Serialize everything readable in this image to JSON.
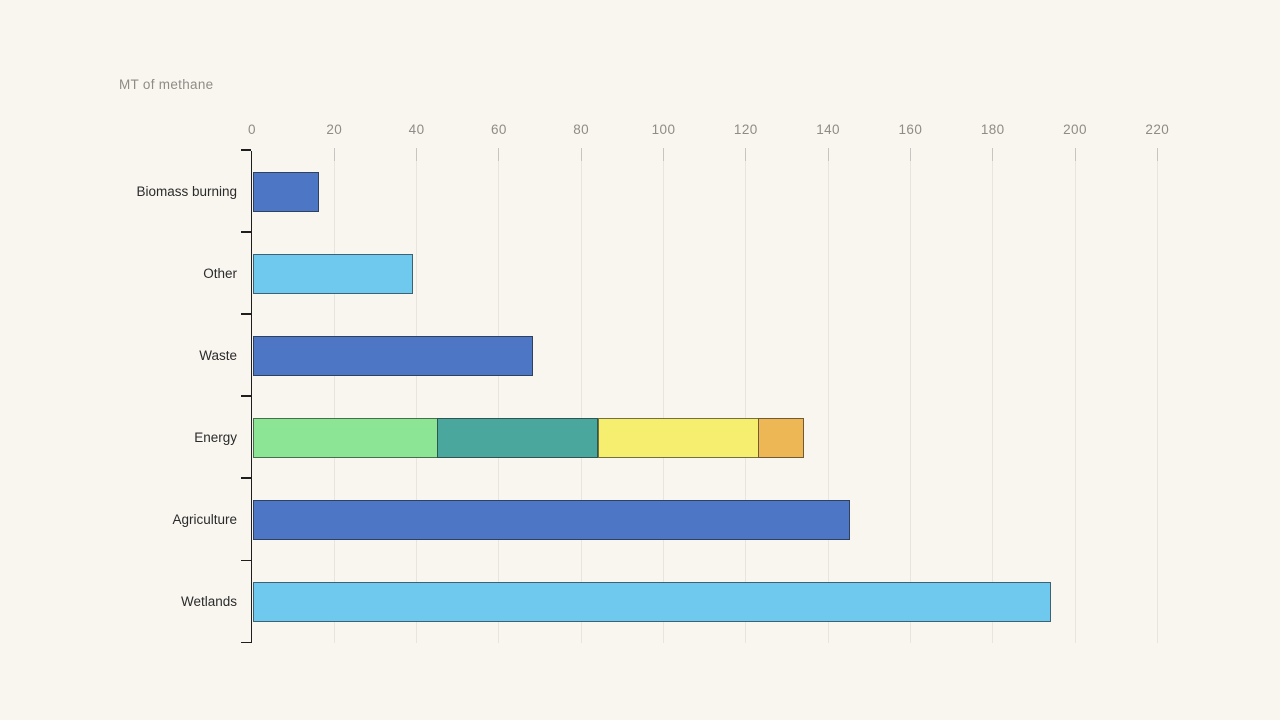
{
  "chart_data": {
    "type": "bar",
    "orientation": "horizontal",
    "title": "MT of methane",
    "xlabel": "",
    "ylabel": "",
    "xlim": [
      0,
      225
    ],
    "x_ticks": [
      0,
      20,
      40,
      60,
      80,
      100,
      120,
      140,
      160,
      180,
      200,
      220
    ],
    "grid": true,
    "legend": false,
    "categories": [
      "Biomass burning",
      "Other",
      "Waste",
      "Energy",
      "Agriculture",
      "Wetlands"
    ],
    "bars": [
      {
        "category": "Biomass burning",
        "total": 16,
        "segments": [
          {
            "value": 16,
            "color": "darkBlue"
          }
        ]
      },
      {
        "category": "Other",
        "total": 39,
        "segments": [
          {
            "value": 39,
            "color": "lightBlue"
          }
        ]
      },
      {
        "category": "Waste",
        "total": 68,
        "segments": [
          {
            "value": 68,
            "color": "darkBlue"
          }
        ]
      },
      {
        "category": "Energy",
        "total": 134,
        "segments": [
          {
            "value": 45,
            "color": "green"
          },
          {
            "value": 39,
            "color": "teal"
          },
          {
            "value": 39,
            "color": "yellow"
          },
          {
            "value": 11,
            "color": "orange"
          }
        ]
      },
      {
        "category": "Agriculture",
        "total": 145,
        "segments": [
          {
            "value": 145,
            "color": "darkBlue"
          }
        ]
      },
      {
        "category": "Wetlands",
        "total": 194,
        "segments": [
          {
            "value": 194,
            "color": "lightBlue"
          }
        ]
      }
    ]
  },
  "colors": {
    "background": "#f9f6f0",
    "darkBlue": "#4d77c4",
    "lightBlue": "#6fc8ed",
    "green": "#8ce595",
    "teal": "#4aa79e",
    "yellow": "#f6ee6e",
    "orange": "#edb755",
    "gridline": "#e8e5de",
    "tickStub": "#c7c5bf",
    "axis": "#1e1e1e",
    "mutedText": "#8e8c86",
    "labelText": "#2b2b2b",
    "barBorder": "rgba(30,30,30,0.6)"
  }
}
